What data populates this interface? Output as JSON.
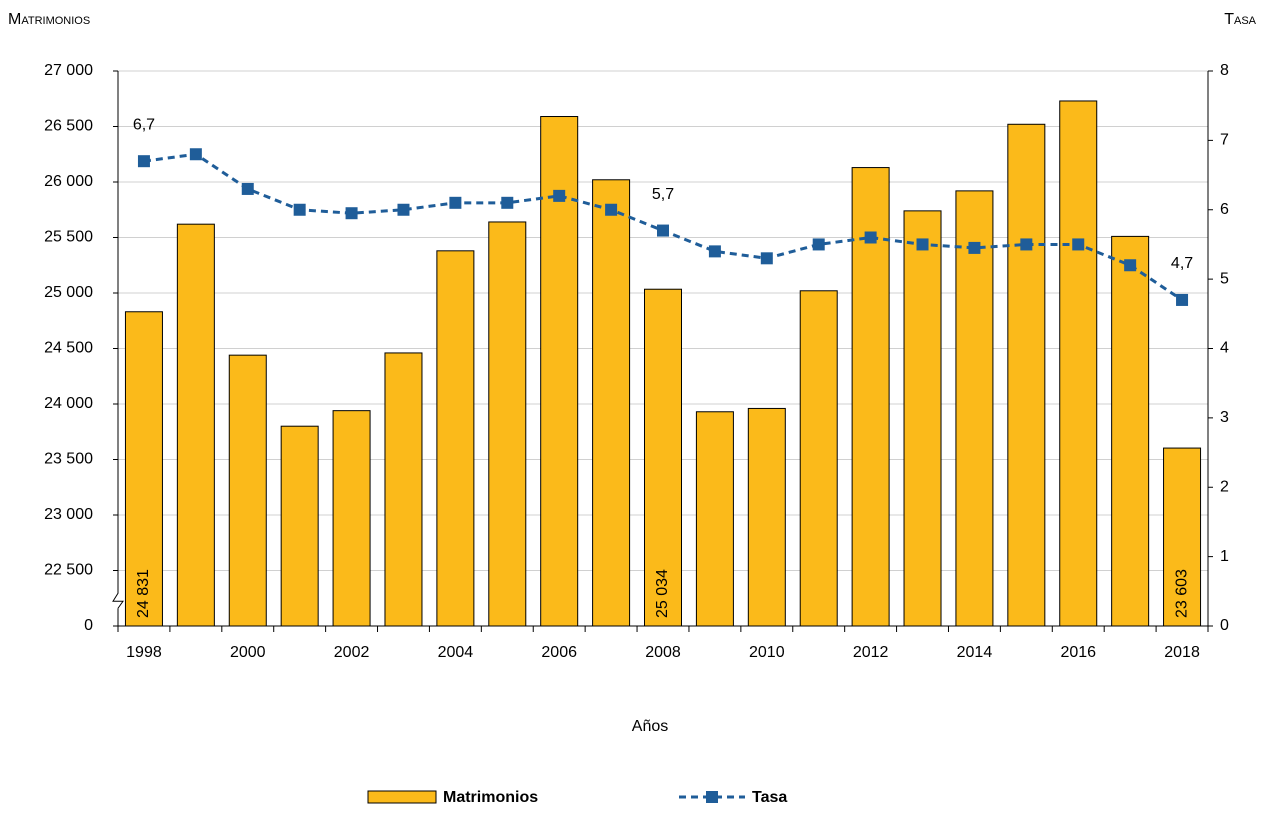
{
  "chart_data": {
    "type": "bar-line",
    "y_label": "Matrimonios",
    "y2_label": "Tasa",
    "x_label": "Años",
    "categories": [
      "1998",
      null,
      "2000",
      null,
      "2002",
      null,
      "2004",
      null,
      "2006",
      null,
      "2008",
      null,
      "2010",
      null,
      "2012",
      null,
      "2014",
      null,
      "2016",
      null,
      "2018"
    ],
    "series": [
      {
        "name": "Matrimonios",
        "color": "#fbba1a",
        "kind": "bar",
        "values": [
          24831,
          25620,
          24440,
          23800,
          23940,
          24460,
          25380,
          25640,
          26590,
          26020,
          25034,
          23930,
          23960,
          25020,
          26130,
          25740,
          25920,
          26520,
          26730,
          25510,
          23603
        ],
        "value_labels": [
          "24 831",
          null,
          null,
          null,
          null,
          null,
          null,
          null,
          null,
          null,
          "25 034",
          null,
          null,
          null,
          null,
          null,
          null,
          null,
          null,
          null,
          "23 603"
        ]
      },
      {
        "name": "Tasa",
        "color": "#1f5d99",
        "kind": "line",
        "axis": "y2",
        "values": [
          6.7,
          6.8,
          6.3,
          6.0,
          5.95,
          6.0,
          6.1,
          6.1,
          6.2,
          6.0,
          5.7,
          5.4,
          5.3,
          5.5,
          5.6,
          5.5,
          5.45,
          5.5,
          5.5,
          5.2,
          4.7
        ],
        "value_labels": [
          "6,7",
          null,
          null,
          null,
          null,
          null,
          null,
          null,
          null,
          null,
          "5,7",
          null,
          null,
          null,
          null,
          null,
          null,
          null,
          null,
          null,
          "4,7"
        ]
      }
    ],
    "ylim": [
      0,
      27000
    ],
    "y_break": [
      0,
      22000
    ],
    "yticks": [
      0,
      {
        "value": 22500,
        "label": "22 500"
      },
      {
        "value": 23000,
        "label": "23 000"
      },
      {
        "value": 23500,
        "label": "23 500"
      },
      {
        "value": 24000,
        "label": "24 000"
      },
      {
        "value": 24500,
        "label": "24 500"
      },
      {
        "value": 25000,
        "label": "25 000"
      },
      {
        "value": 25500,
        "label": "25 500"
      },
      {
        "value": 26000,
        "label": "26 000"
      },
      {
        "value": 26500,
        "label": "26 500"
      },
      {
        "value": 27000,
        "label": "27 000"
      }
    ],
    "y2lim": [
      0,
      8
    ],
    "y2ticks": [
      0,
      1,
      2,
      3,
      4,
      5,
      6,
      7,
      8
    ],
    "grid": true
  }
}
